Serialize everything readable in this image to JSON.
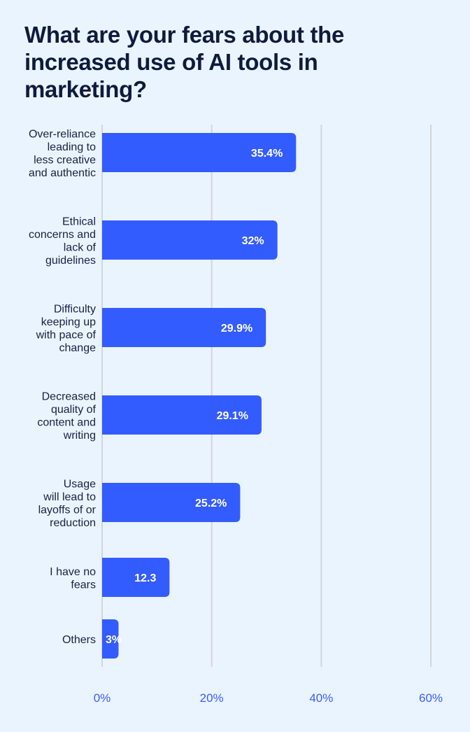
{
  "title": "What are your fears about the increased use of AI tools in marketing?",
  "colors": {
    "bar": "#335cff",
    "background": "#eaf4ff",
    "grid": "#d3d6db",
    "tick": "#3b5cff",
    "title": "#101a3c"
  },
  "chart_data": {
    "type": "bar",
    "orientation": "horizontal",
    "title": "What are your fears about the increased use of AI tools in marketing?",
    "categories": [
      [
        "Over-reliance",
        "leading to",
        "less creative",
        "and authentic"
      ],
      [
        "Ethical",
        "concerns and",
        "lack of",
        "guidelines"
      ],
      [
        "Difficulty",
        "keeping up",
        "with pace of",
        "change"
      ],
      [
        "Decreased",
        "quality of",
        "content and",
        "writing"
      ],
      [
        "Usage",
        "will lead to",
        "layoffs of or",
        "reduction"
      ],
      [
        "I have no",
        "fears"
      ],
      [
        "Others"
      ]
    ],
    "values": [
      35.4,
      32,
      29.9,
      29.1,
      25.2,
      12.3,
      3
    ],
    "data_labels": [
      "35.4%",
      "32%",
      "29.9%",
      "29.1%",
      "25.2%",
      "12.3",
      "3%"
    ],
    "xlim": [
      0,
      60
    ],
    "xticks": [
      0,
      20,
      40,
      60
    ],
    "xtick_labels": [
      "0%",
      "20%",
      "40%",
      "60%"
    ],
    "grid": true,
    "xlabel": "",
    "ylabel": ""
  }
}
